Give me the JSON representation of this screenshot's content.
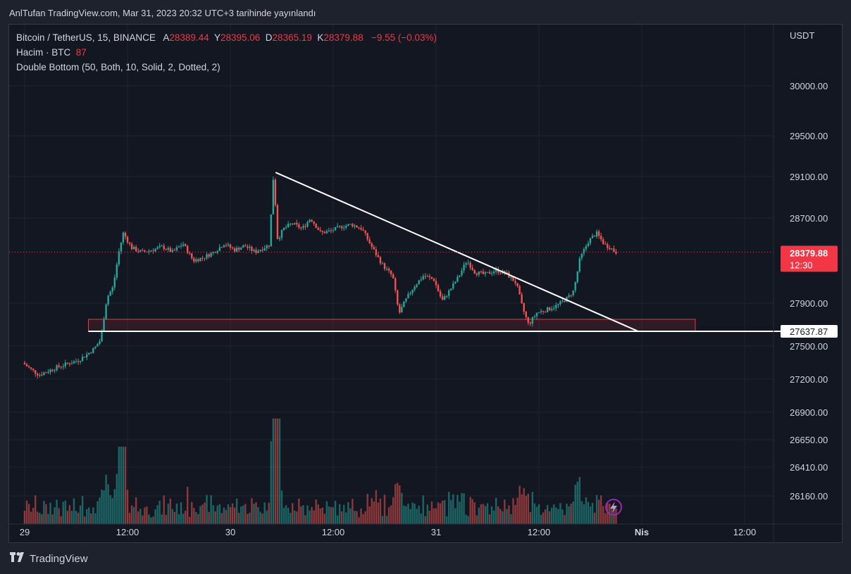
{
  "header": {
    "publisher": "AnlTufan TradingView.com, Mar 31, 2023 20:32 UTC+3 tarihinde yayınlandı"
  },
  "legend": {
    "symbol": "Bitcoin / TetherUS, 15, BINANCE",
    "open_label": "A",
    "open": "28389.44",
    "high_label": "Y",
    "high": "28395.06",
    "low_label": "D",
    "low": "28365.19",
    "close_label": "K",
    "close": "28379.88",
    "change": "−9.55 (−0.03%)",
    "volume_label": "Hacim · BTC",
    "volume_value": "87",
    "indicator": "Double Bottom (50, Both, 10, Solid, 2, Dotted, 2)"
  },
  "footer": {
    "brand": "TradingView"
  },
  "colors": {
    "up": "#26a69a",
    "down": "#ef5350",
    "price_badge": "#f23645",
    "background": "#131722",
    "grid": "#1f2330"
  },
  "chart_data": {
    "type": "candlestick",
    "currency": "USDT",
    "y_ticks": [
      "30000.00",
      "29500.00",
      "29100.00",
      "28700.00",
      "27900.00",
      "27500.00",
      "27200.00",
      "26900.00",
      "26650.00",
      "26410.00",
      "26160.00"
    ],
    "x_ticks": [
      {
        "label": "29",
        "day": 0
      },
      {
        "label": "12:00",
        "day": 0.5
      },
      {
        "label": "30",
        "day": 1
      },
      {
        "label": "12:00",
        "day": 1.5
      },
      {
        "label": "31",
        "day": 2
      },
      {
        "label": "12:00",
        "day": 2.5
      },
      {
        "label": "Nis",
        "day": 3
      },
      {
        "label": "12:00",
        "day": 3.5
      }
    ],
    "last_price": "28379.88",
    "countdown": "12:30",
    "support_label": "27637.87",
    "support_price": 27637.87,
    "support_zone": [
      27637.87,
      27710
    ],
    "trendline": [
      {
        "day": 1.22,
        "price": 29140
      },
      {
        "day": 2.98,
        "price": 27640
      }
    ],
    "price_path": [
      [
        0.0,
        27350
      ],
      [
        0.04,
        27290
      ],
      [
        0.08,
        27240
      ],
      [
        0.12,
        27270
      ],
      [
        0.17,
        27310
      ],
      [
        0.22,
        27340
      ],
      [
        0.27,
        27370
      ],
      [
        0.31,
        27420
      ],
      [
        0.35,
        27480
      ],
      [
        0.38,
        27560
      ],
      [
        0.41,
        27950
      ],
      [
        0.44,
        28050
      ],
      [
        0.47,
        28400
      ],
      [
        0.49,
        28560
      ],
      [
        0.53,
        28420
      ],
      [
        0.58,
        28380
      ],
      [
        0.63,
        28400
      ],
      [
        0.68,
        28430
      ],
      [
        0.73,
        28380
      ],
      [
        0.78,
        28460
      ],
      [
        0.83,
        28300
      ],
      [
        0.88,
        28330
      ],
      [
        0.93,
        28380
      ],
      [
        0.98,
        28460
      ],
      [
        1.03,
        28400
      ],
      [
        1.08,
        28440
      ],
      [
        1.13,
        28380
      ],
      [
        1.17,
        28420
      ],
      [
        1.2,
        28450
      ],
      [
        1.22,
        29120
      ],
      [
        1.24,
        28500
      ],
      [
        1.27,
        28600
      ],
      [
        1.31,
        28650
      ],
      [
        1.36,
        28600
      ],
      [
        1.4,
        28700
      ],
      [
        1.45,
        28560
      ],
      [
        1.5,
        28580
      ],
      [
        1.55,
        28620
      ],
      [
        1.6,
        28640
      ],
      [
        1.65,
        28600
      ],
      [
        1.7,
        28420
      ],
      [
        1.75,
        28260
      ],
      [
        1.8,
        28150
      ],
      [
        1.83,
        27800
      ],
      [
        1.86,
        27920
      ],
      [
        1.9,
        28050
      ],
      [
        1.95,
        28160
      ],
      [
        2.0,
        28120
      ],
      [
        2.04,
        27920
      ],
      [
        2.08,
        28030
      ],
      [
        2.12,
        28150
      ],
      [
        2.16,
        28300
      ],
      [
        2.2,
        28190
      ],
      [
        2.25,
        28170
      ],
      [
        2.3,
        28210
      ],
      [
        2.35,
        28180
      ],
      [
        2.4,
        28090
      ],
      [
        2.43,
        27860
      ],
      [
        2.46,
        27700
      ],
      [
        2.5,
        27810
      ],
      [
        2.55,
        27840
      ],
      [
        2.6,
        27880
      ],
      [
        2.65,
        27950
      ],
      [
        2.68,
        28020
      ],
      [
        2.71,
        28320
      ],
      [
        2.75,
        28480
      ],
      [
        2.79,
        28560
      ],
      [
        2.83,
        28450
      ],
      [
        2.86,
        28420
      ],
      [
        2.88,
        28380
      ]
    ],
    "volume_scale_max": 100
  }
}
